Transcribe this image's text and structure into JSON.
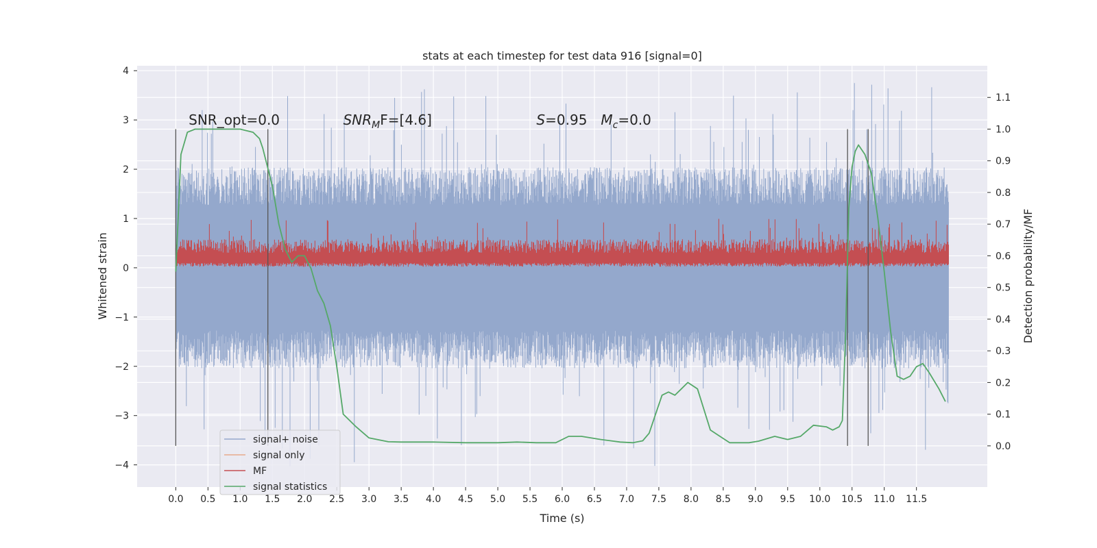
{
  "chart_data": {
    "type": "line",
    "title": "stats at each timestep for test data 916 [signal=0]",
    "xlabel": "Time (s)",
    "ylabel": "Whitened strain",
    "ylabel_right": "Detection probability/MF",
    "xlim": [
      -0.6,
      12.6
    ],
    "ylim": [
      -4.45,
      4.1
    ],
    "ylim_right": [
      -0.13,
      1.2
    ],
    "x_ticks": [
      "0.0",
      "0.5",
      "1.0",
      "1.5",
      "2.0",
      "2.5",
      "3.0",
      "3.5",
      "4.0",
      "4.5",
      "5.0",
      "5.5",
      "6.0",
      "6.5",
      "7.0",
      "7.5",
      "8.0",
      "8.5",
      "9.0",
      "9.5",
      "10.0",
      "10.5",
      "11.0",
      "11.5"
    ],
    "y_ticks": [
      "4",
      "3",
      "2",
      "1",
      "0",
      "−1",
      "−2",
      "−3",
      "−4"
    ],
    "y_ticks_right": [
      "1.1",
      "1.0",
      "0.9",
      "0.8",
      "0.7",
      "0.6",
      "0.5",
      "0.4",
      "0.3",
      "0.2",
      "0.1",
      "0.0"
    ],
    "grid": true,
    "legend_position": "lower-left",
    "series": [
      {
        "name": "signal+ noise",
        "color": "#94a8cc",
        "x_range": [
          0.0,
          12.0
        ],
        "envelope_typical": [
          -1.7,
          1.7
        ],
        "envelope_extreme": [
          -4.1,
          3.75
        ]
      },
      {
        "name": "signal only",
        "color": "#e8a98b",
        "values": []
      },
      {
        "name": "MF",
        "color": "#c44e52",
        "x_range": [
          0.0,
          12.0
        ],
        "envelope_typical": [
          0.05,
          0.55
        ],
        "envelope_extreme": [
          0.0,
          1.0
        ]
      },
      {
        "name": "signal statistics",
        "color": "#55a868",
        "x": [
          0.0,
          0.08,
          0.18,
          0.3,
          0.5,
          0.8,
          1.0,
          1.2,
          1.3,
          1.35,
          1.4,
          1.5,
          1.6,
          1.7,
          1.8,
          1.9,
          2.0,
          2.1,
          2.2,
          2.3,
          2.4,
          2.5,
          2.6,
          2.8,
          3.0,
          3.3,
          3.5,
          4.0,
          4.5,
          5.0,
          5.3,
          5.6,
          5.9,
          6.1,
          6.3,
          6.6,
          6.9,
          7.1,
          7.25,
          7.35,
          7.45,
          7.55,
          7.65,
          7.75,
          7.85,
          7.95,
          8.1,
          8.3,
          8.6,
          8.9,
          9.05,
          9.3,
          9.5,
          9.7,
          9.9,
          10.1,
          10.2,
          10.3,
          10.35,
          10.4,
          10.45,
          10.5,
          10.55,
          10.6,
          10.7,
          10.8,
          10.9,
          11.0,
          11.1,
          11.2,
          11.3,
          11.4,
          11.5,
          11.6,
          11.7,
          11.85,
          11.95
        ],
        "y": [
          0.55,
          0.92,
          0.99,
          1.0,
          1.0,
          1.0,
          1.0,
          0.99,
          0.97,
          0.94,
          0.9,
          0.82,
          0.7,
          0.62,
          0.58,
          0.6,
          0.6,
          0.56,
          0.49,
          0.45,
          0.38,
          0.25,
          0.1,
          0.06,
          0.025,
          0.013,
          0.012,
          0.012,
          0.01,
          0.01,
          0.012,
          0.01,
          0.01,
          0.03,
          0.03,
          0.02,
          0.012,
          0.01,
          0.016,
          0.04,
          0.1,
          0.16,
          0.17,
          0.16,
          0.18,
          0.2,
          0.18,
          0.05,
          0.01,
          0.01,
          0.015,
          0.03,
          0.02,
          0.03,
          0.065,
          0.06,
          0.05,
          0.06,
          0.08,
          0.35,
          0.75,
          0.88,
          0.93,
          0.95,
          0.92,
          0.86,
          0.72,
          0.55,
          0.36,
          0.22,
          0.21,
          0.22,
          0.25,
          0.26,
          0.23,
          0.18,
          0.14
        ]
      }
    ],
    "vertical_lines_x": [
      0.0,
      1.43,
      10.43,
      10.75
    ],
    "annotations": [
      {
        "text": "SNR_opt=0.0",
        "x": 0.2,
        "y": 3.0
      },
      {
        "base": "SNR",
        "sub": "M",
        "rest": "F=[4.6]",
        "x": 2.6,
        "y": 3.0
      },
      {
        "base": "S",
        "rest": "=0.95",
        "x": 5.6,
        "y": 3.0
      },
      {
        "base": "M",
        "sub": "c",
        "rest": "=0.0",
        "x": 6.6,
        "y": 3.0
      }
    ]
  }
}
